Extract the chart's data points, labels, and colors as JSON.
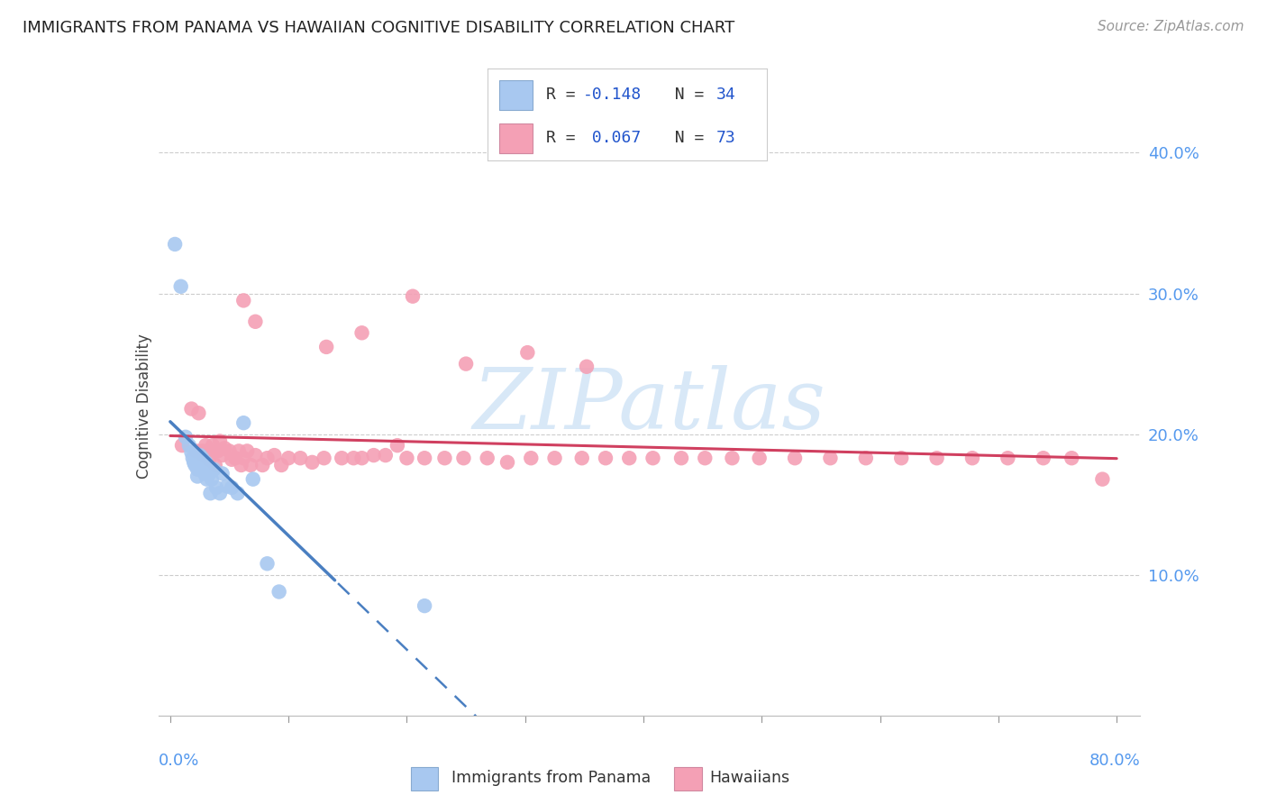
{
  "title": "IMMIGRANTS FROM PANAMA VS HAWAIIAN COGNITIVE DISABILITY CORRELATION CHART",
  "source": "Source: ZipAtlas.com",
  "ylabel": "Cognitive Disability",
  "xlim": [
    0.0,
    0.8
  ],
  "ylim": [
    0.0,
    0.42
  ],
  "yticks": [
    0.1,
    0.2,
    0.3,
    0.4
  ],
  "ytick_labels": [
    "10.0%",
    "20.0%",
    "30.0%",
    "40.0%"
  ],
  "color_blue": "#a8c8f0",
  "color_pink": "#f4a0b5",
  "color_blue_line": "#4a7fc1",
  "color_pink_line": "#d04060",
  "color_axis_text": "#5599ee",
  "watermark_color": "#c8dff5",
  "grid_color": "#cccccc",
  "panama_x": [
    0.004,
    0.009,
    0.013,
    0.016,
    0.018,
    0.019,
    0.02,
    0.021,
    0.022,
    0.023,
    0.023,
    0.025,
    0.026,
    0.027,
    0.028,
    0.029,
    0.03,
    0.031,
    0.032,
    0.033,
    0.034,
    0.035,
    0.037,
    0.039,
    0.042,
    0.044,
    0.048,
    0.052,
    0.057,
    0.062,
    0.07,
    0.082,
    0.092,
    0.215
  ],
  "panama_y": [
    0.335,
    0.305,
    0.198,
    0.192,
    0.187,
    0.183,
    0.18,
    0.178,
    0.182,
    0.175,
    0.17,
    0.185,
    0.178,
    0.183,
    0.178,
    0.172,
    0.18,
    0.168,
    0.175,
    0.172,
    0.158,
    0.168,
    0.175,
    0.162,
    0.158,
    0.172,
    0.163,
    0.162,
    0.158,
    0.208,
    0.168,
    0.108,
    0.088,
    0.078
  ],
  "hawaii_x": [
    0.01,
    0.018,
    0.022,
    0.024,
    0.027,
    0.028,
    0.03,
    0.031,
    0.033,
    0.035,
    0.036,
    0.038,
    0.04,
    0.042,
    0.044,
    0.046,
    0.05,
    0.052,
    0.055,
    0.058,
    0.06,
    0.062,
    0.065,
    0.068,
    0.072,
    0.078,
    0.082,
    0.088,
    0.094,
    0.1,
    0.11,
    0.12,
    0.13,
    0.145,
    0.155,
    0.162,
    0.172,
    0.182,
    0.192,
    0.2,
    0.215,
    0.232,
    0.248,
    0.268,
    0.285,
    0.305,
    0.325,
    0.348,
    0.368,
    0.388,
    0.408,
    0.432,
    0.452,
    0.475,
    0.498,
    0.528,
    0.558,
    0.588,
    0.618,
    0.648,
    0.678,
    0.708,
    0.738,
    0.762,
    0.788,
    0.062,
    0.072,
    0.132,
    0.162,
    0.205,
    0.25,
    0.302,
    0.352
  ],
  "hawaii_y": [
    0.192,
    0.218,
    0.188,
    0.215,
    0.188,
    0.185,
    0.192,
    0.188,
    0.182,
    0.188,
    0.192,
    0.178,
    0.188,
    0.195,
    0.185,
    0.19,
    0.188,
    0.182,
    0.183,
    0.188,
    0.178,
    0.183,
    0.188,
    0.178,
    0.185,
    0.178,
    0.183,
    0.185,
    0.178,
    0.183,
    0.183,
    0.18,
    0.183,
    0.183,
    0.183,
    0.183,
    0.185,
    0.185,
    0.192,
    0.183,
    0.183,
    0.183,
    0.183,
    0.183,
    0.18,
    0.183,
    0.183,
    0.183,
    0.183,
    0.183,
    0.183,
    0.183,
    0.183,
    0.183,
    0.183,
    0.183,
    0.183,
    0.183,
    0.183,
    0.183,
    0.183,
    0.183,
    0.183,
    0.183,
    0.168,
    0.295,
    0.28,
    0.262,
    0.272,
    0.298,
    0.25,
    0.258,
    0.248
  ]
}
